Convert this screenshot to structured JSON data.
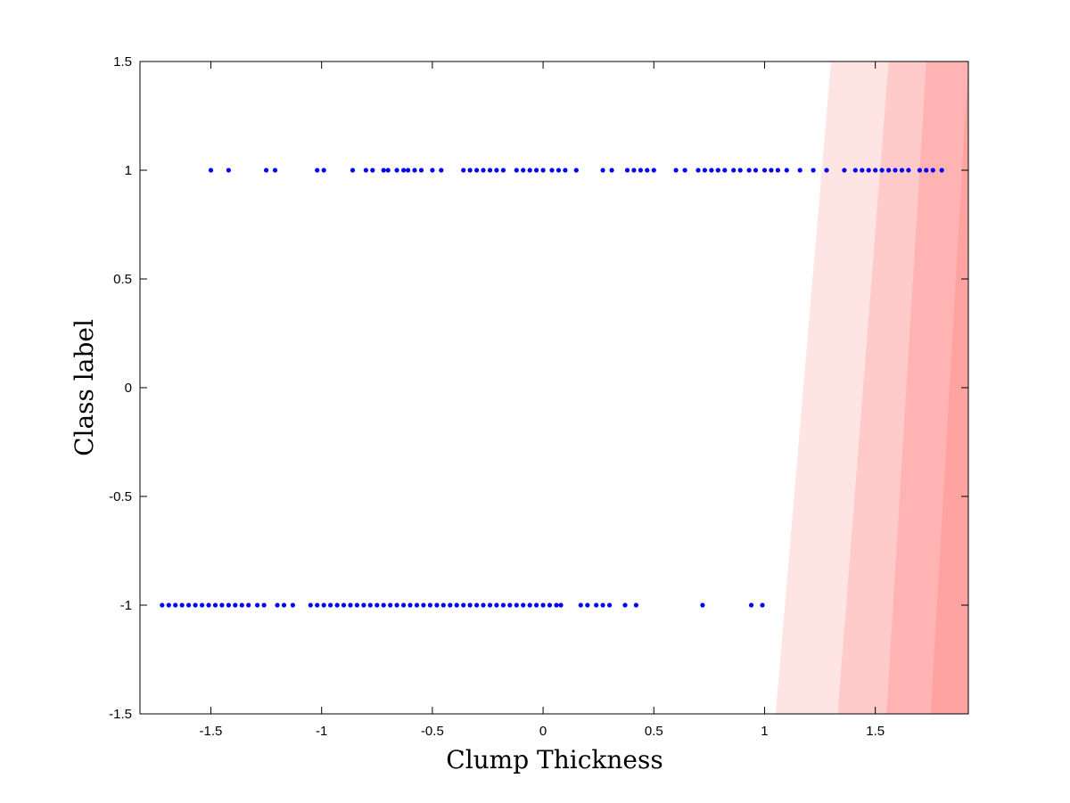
{
  "chart_data": {
    "type": "scatter",
    "xlabel": "Clump Thickness",
    "ylabel": "Class label",
    "xlim": [
      -1.82,
      1.92
    ],
    "ylim": [
      -1.5,
      1.5
    ],
    "xticks": [
      -1.5,
      -1,
      -0.5,
      0,
      0.5,
      1,
      1.5
    ],
    "xtick_labels": [
      "-1.5",
      "-1",
      "-0.5",
      "0",
      "0.5",
      "1",
      "1.5"
    ],
    "yticks": [
      -1.5,
      -1,
      -0.5,
      0,
      0.5,
      1,
      1.5
    ],
    "ytick_labels": [
      "-1.5",
      "-1",
      "-0.5",
      "0",
      "0.5",
      "1",
      "1.5"
    ],
    "grid": false,
    "marker_color": "#0000ff",
    "series": [
      {
        "values_y": 1,
        "x": [
          -1.5,
          -1.42,
          -1.25,
          -1.21,
          -1.02,
          -0.99,
          -0.86,
          -0.8,
          -0.77,
          -0.72,
          -0.7,
          -0.66,
          -0.63,
          -0.61,
          -0.58,
          -0.55,
          -0.5,
          -0.46,
          -0.36,
          -0.33,
          -0.3,
          -0.27,
          -0.24,
          -0.21,
          -0.18,
          -0.12,
          -0.09,
          -0.06,
          -0.03,
          0.0,
          0.04,
          0.07,
          0.1,
          0.15,
          0.27,
          0.31,
          0.38,
          0.41,
          0.44,
          0.47,
          0.5,
          0.6,
          0.64,
          0.7,
          0.73,
          0.76,
          0.79,
          0.82,
          0.86,
          0.89,
          0.93,
          0.96,
          1.0,
          1.03,
          1.06,
          1.1,
          1.16,
          1.22,
          1.28,
          1.36,
          1.41,
          1.44,
          1.47,
          1.5,
          1.53,
          1.56,
          1.59,
          1.62,
          1.65,
          1.7,
          1.73,
          1.76,
          1.8
        ]
      },
      {
        "values_y": -1,
        "x": [
          -1.72,
          -1.69,
          -1.66,
          -1.63,
          -1.6,
          -1.57,
          -1.54,
          -1.51,
          -1.48,
          -1.45,
          -1.42,
          -1.39,
          -1.36,
          -1.33,
          -1.29,
          -1.26,
          -1.2,
          -1.17,
          -1.13,
          -1.05,
          -1.02,
          -0.99,
          -0.96,
          -0.93,
          -0.9,
          -0.87,
          -0.84,
          -0.81,
          -0.78,
          -0.75,
          -0.72,
          -0.69,
          -0.66,
          -0.63,
          -0.6,
          -0.57,
          -0.54,
          -0.51,
          -0.48,
          -0.45,
          -0.42,
          -0.39,
          -0.36,
          -0.33,
          -0.3,
          -0.27,
          -0.24,
          -0.21,
          -0.18,
          -0.15,
          -0.12,
          -0.09,
          -0.06,
          -0.03,
          0.0,
          0.03,
          0.06,
          0.08,
          0.17,
          0.2,
          0.24,
          0.27,
          0.3,
          0.37,
          0.42,
          0.72,
          0.94,
          0.99
        ]
      }
    ],
    "background_regions": [
      {
        "color": "#ffe4e4",
        "bottom_x": 1.05,
        "top_x": 1.3
      },
      {
        "color": "#ffcaca",
        "bottom_x": 1.33,
        "top_x": 1.56
      },
      {
        "color": "#ffb3b3",
        "bottom_x": 1.55,
        "top_x": 1.73
      },
      {
        "color": "#ffa2a2",
        "bottom_x": 1.75,
        "top_x": 1.92
      }
    ]
  }
}
